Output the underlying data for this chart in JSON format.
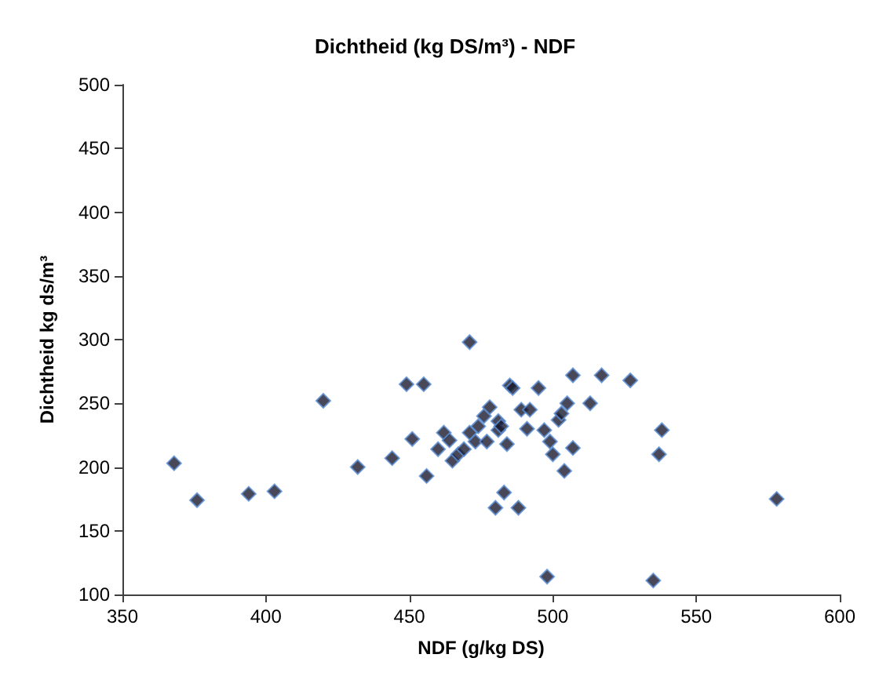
{
  "chart_data": {
    "type": "scatter",
    "title": "Dichtheid (kg DS/m³) - NDF",
    "xlabel": "NDF (g/kg DS)",
    "ylabel": "Dichtheid kg ds/m³",
    "marker": "diamond",
    "grid": false,
    "xlim": [
      350,
      600
    ],
    "xticks": [
      350,
      400,
      450,
      500,
      550,
      600
    ],
    "ylim": [
      100,
      500
    ],
    "yticks": [
      100,
      150,
      200,
      250,
      300,
      350,
      400,
      450,
      500
    ],
    "series": [
      {
        "color": "#1a1a2e",
        "x": [
          368,
          376,
          394,
          403,
          420,
          432,
          444,
          449,
          451,
          455,
          456,
          460,
          462,
          464,
          465,
          467,
          469,
          471,
          471,
          473,
          474,
          476,
          477,
          478,
          480,
          481,
          481,
          482,
          483,
          484,
          485,
          486,
          488,
          489,
          491,
          492,
          495,
          497,
          498,
          499,
          500,
          502,
          503,
          504,
          505,
          507,
          507,
          513,
          517,
          527,
          535,
          537,
          538,
          578
        ],
        "values": [
          203,
          174,
          179,
          181,
          252,
          200,
          207,
          265,
          222,
          265,
          193,
          214,
          227,
          221,
          205,
          210,
          214,
          298,
          227,
          220,
          232,
          240,
          220,
          247,
          168,
          236,
          229,
          232,
          180,
          218,
          264,
          262,
          168,
          245,
          230,
          245,
          262,
          229,
          114,
          220,
          210,
          237,
          242,
          197,
          250,
          215,
          272,
          250,
          272,
          268,
          111,
          210,
          229,
          175
        ]
      }
    ]
  }
}
